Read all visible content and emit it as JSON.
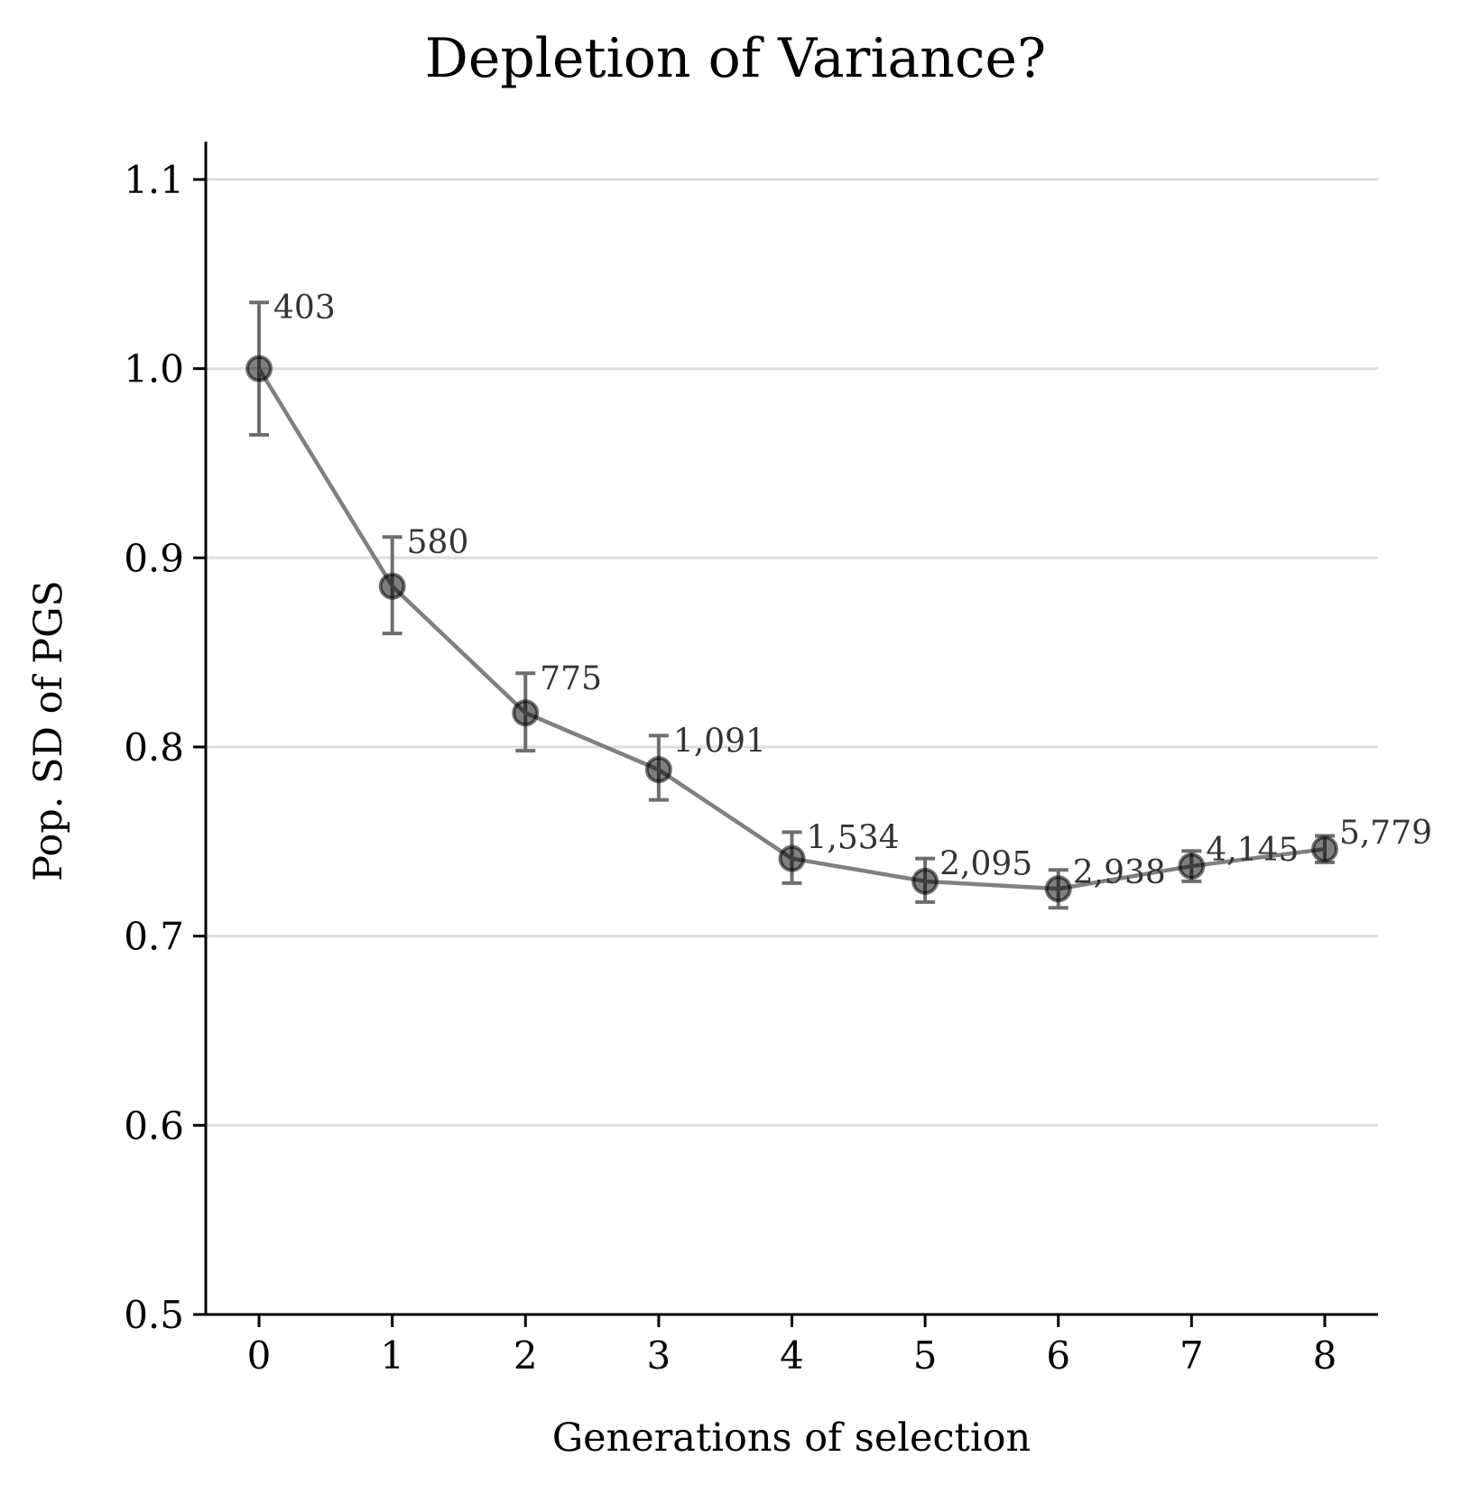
{
  "chart_data": {
    "type": "line",
    "title": "Depletion of Variance?",
    "xlabel": "Generations of selection",
    "ylabel": "Pop. SD of PGS",
    "x": [
      0,
      1,
      2,
      3,
      4,
      5,
      6,
      7,
      8
    ],
    "x_ticks": [
      "0",
      "1",
      "2",
      "3",
      "4",
      "5",
      "6",
      "7",
      "8"
    ],
    "y_ticks": [
      "0.5",
      "0.6",
      "0.7",
      "0.8",
      "0.9",
      "1.0",
      "1.1"
    ],
    "ylim": [
      0.5,
      1.12
    ],
    "xlim": [
      -0.4,
      8.4
    ],
    "grid": "horizontal",
    "series": [
      {
        "values": [
          1.0,
          0.885,
          0.818,
          0.788,
          0.741,
          0.729,
          0.725,
          0.737,
          0.746
        ],
        "err_low": [
          0.965,
          0.86,
          0.798,
          0.772,
          0.728,
          0.718,
          0.715,
          0.729,
          0.739
        ],
        "err_high": [
          1.035,
          0.911,
          0.839,
          0.806,
          0.755,
          0.741,
          0.735,
          0.745,
          0.753
        ],
        "labels": [
          "403",
          "580",
          "775",
          "1,091",
          "1,534",
          "2,095",
          "2,938",
          "4,145",
          "5,779"
        ],
        "color": "#000000",
        "line_color": "#808080",
        "errorbar_color": "#6e6e6e"
      }
    ]
  }
}
